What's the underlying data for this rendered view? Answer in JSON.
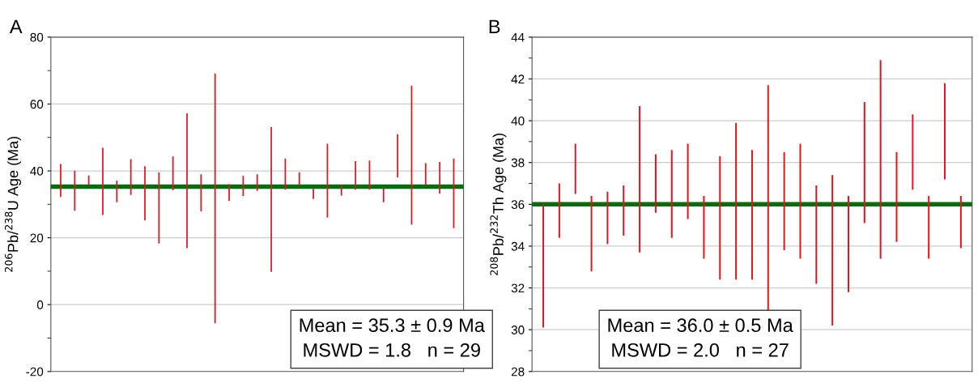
{
  "chart_data": [
    {
      "type": "bar",
      "title": "A",
      "ylabel": "$^{206}$Pb/$^{238}$U Age (Ma)",
      "categories": [
        null,
        null,
        null,
        null,
        null,
        null,
        null,
        null,
        null,
        null,
        null,
        null,
        null,
        null,
        null,
        null,
        null,
        null,
        null,
        null,
        null,
        null,
        null,
        null,
        null,
        null,
        null,
        null,
        null
      ],
      "base": [
        32.2,
        28.1,
        35.7,
        26.8,
        30.6,
        32.8,
        25.2,
        18.3,
        34.2,
        16.9,
        27.9,
        -5.6,
        31.0,
        32.5,
        34.0,
        9.8,
        34.4,
        35.6,
        31.6,
        26.0,
        32.6,
        34.4,
        34.4,
        30.6,
        38.1,
        23.9,
        35.6,
        33.2,
        22.9
      ],
      "values": [
        9.9,
        12.0,
        2.9,
        20.1,
        6.5,
        10.7,
        16.2,
        21.2,
        10.1,
        40.3,
        11.1,
        74.7,
        5.0,
        6.0,
        5.0,
        43.3,
        9.3,
        4.0,
        3.0,
        22.1,
        3.3,
        8.5,
        8.7,
        4.2,
        12.9,
        41.6,
        6.7,
        9.5,
        20.8
      ],
      "color": "#e3141b",
      "ylim": [
        -20,
        80
      ],
      "yticks": [
        -20,
        {
          "value": -10,
          "label": null
        },
        0,
        {
          "value": 10,
          "label": null
        },
        20,
        {
          "value": 30,
          "label": null
        },
        40,
        {
          "value": 50,
          "label": null
        },
        60,
        {
          "value": 70,
          "label": null
        },
        80
      ],
      "grid": "y",
      "ref_lines": [
        {
          "axis": "y",
          "value": 35.3,
          "label": null,
          "color": "#0b6b12"
        }
      ],
      "annotations": [
        "Mean = 35.3 ± 0.9 Ma",
        "MSWD = 1.8   n = 29"
      ]
    },
    {
      "type": "bar",
      "title": "B",
      "ylabel": "$^{208}$Pb/$^{232}$Th Age (Ma)",
      "categories": [
        null,
        null,
        null,
        null,
        null,
        null,
        null,
        null,
        null,
        null,
        null,
        null,
        null,
        null,
        null,
        null,
        null,
        null,
        null,
        null,
        null,
        null,
        null,
        null,
        null,
        null,
        null
      ],
      "base": [
        30.1,
        34.4,
        36.5,
        32.8,
        34.1,
        34.5,
        33.7,
        35.6,
        34.4,
        35.3,
        33.4,
        32.4,
        32.4,
        32.4,
        30.9,
        33.8,
        33.4,
        32.2,
        30.2,
        31.8,
        35.1,
        33.4,
        34.2,
        36.7,
        33.4,
        37.2,
        33.9
      ],
      "values": [
        5.9,
        2.6,
        2.4,
        3.6,
        2.5,
        2.4,
        7.0,
        2.8,
        4.2,
        3.6,
        3.0,
        5.9,
        7.5,
        6.2,
        10.8,
        4.7,
        5.5,
        4.7,
        7.2,
        4.6,
        5.8,
        9.5,
        4.3,
        3.6,
        3.0,
        4.6,
        2.5
      ],
      "color": "#e3141b",
      "ylim": [
        28,
        44
      ],
      "yticks": [
        28,
        {
          "value": 29,
          "label": null
        },
        30,
        {
          "value": 31,
          "label": null
        },
        32,
        {
          "value": 33,
          "label": null
        },
        34,
        {
          "value": 35,
          "label": null
        },
        36,
        {
          "value": 37,
          "label": null
        },
        38,
        {
          "value": 39,
          "label": null
        },
        40,
        {
          "value": 41,
          "label": null
        },
        42,
        {
          "value": 43,
          "label": null
        },
        44
      ],
      "grid": "y",
      "ref_lines": [
        {
          "axis": "y",
          "value": 36.0,
          "label": null,
          "color": "#0b6b12"
        }
      ],
      "annotations": [
        "Mean = 36.0 ± 0.5 Ma",
        "MSWD = 2.0   n = 27"
      ]
    }
  ]
}
